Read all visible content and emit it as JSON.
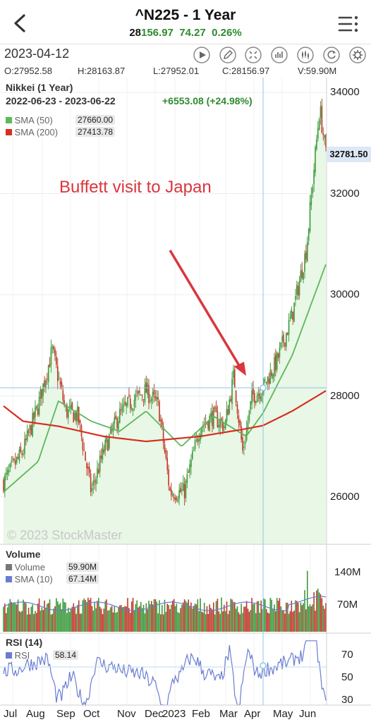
{
  "header": {
    "title": "^N225 - 1 Year",
    "price_head": "28",
    "price_tail": "156.97",
    "change": "74.27",
    "change_pct": "0.26%",
    "accent_up": "#2f8a2f"
  },
  "toolbar": {
    "date": "2023-04-12",
    "icons": [
      "play-icon",
      "pencil-icon",
      "expand-icon",
      "bar-chart-icon",
      "candle-chart-icon",
      "refresh-icon",
      "gear-icon"
    ]
  },
  "ohlc": {
    "open": "O:27952.58",
    "high": "H:28163.87",
    "low": "L:27952.01",
    "close": "C:28156.97",
    "volume": "V:59.90M"
  },
  "price_panel": {
    "title": "Nikkei (1 Year)",
    "range": "2022-06-23 - 2023-06-22",
    "change": "+6553.08 (+24.98%)",
    "sma50_label": "SMA (50)",
    "sma50_value": "27660.00",
    "sma200_label": "SMA (200)",
    "sma200_value": "27413.78",
    "last_price": "32781.50",
    "annotation": "Buffett visit to Japan",
    "watermark": "© 2023 StockMaster",
    "colors": {
      "up": "#3c9a3c",
      "down": "#c0392b",
      "sma50": "#5cb85c",
      "sma200": "#d62f20",
      "crosshair": "#8ec5e8"
    }
  },
  "volume_panel": {
    "title": "Volume",
    "vol_label": "Volume",
    "vol_value": "59.90M",
    "sma_label": "SMA (10)",
    "sma_value": "67.14M"
  },
  "rsi_panel": {
    "title": "RSI (14)",
    "label": "RSI",
    "value": "58.14"
  },
  "axes": {
    "price_ticks": [
      "34000",
      "32000",
      "30000",
      "28000",
      "26000"
    ],
    "volume_ticks": [
      "140M",
      "70M"
    ],
    "rsi_ticks": [
      "70",
      "50",
      "30"
    ],
    "x_ticks": [
      "Jul",
      "Aug",
      "Sep",
      "Oct",
      "Nov",
      "Dec",
      "2023",
      "Feb",
      "Mar",
      "Apr",
      "May",
      "Jun"
    ]
  },
  "chart_data": {
    "type": "line",
    "series": [
      {
        "name": "Nikkei (1 Year)",
        "x": [
          "2022-06-23",
          "2022-07-15",
          "2022-08-01",
          "2022-08-17",
          "2022-09-01",
          "2022-09-15",
          "2022-09-30",
          "2022-10-14",
          "2022-10-31",
          "2022-11-15",
          "2022-12-01",
          "2022-12-15",
          "2022-12-28",
          "2023-01-13",
          "2023-01-31",
          "2023-02-15",
          "2023-02-28",
          "2023-03-10",
          "2023-03-20",
          "2023-03-31",
          "2023-04-12",
          "2023-04-28",
          "2023-05-15",
          "2023-05-31",
          "2023-06-15",
          "2023-06-22"
        ],
        "values": [
          26300,
          26900,
          27800,
          28900,
          27700,
          27600,
          26100,
          26900,
          27600,
          27900,
          28100,
          27800,
          26100,
          26100,
          27400,
          27600,
          27400,
          28400,
          26900,
          28000,
          28157,
          28700,
          29600,
          30900,
          33700,
          32782
        ]
      },
      {
        "name": "SMA (50)",
        "x": [
          "2022-06-23",
          "2022-08-01",
          "2022-08-24",
          "2022-09-30",
          "2022-11-01",
          "2022-12-01",
          "2023-01-10",
          "2023-02-15",
          "2023-03-24",
          "2023-04-12",
          "2023-05-15",
          "2023-06-22"
        ],
        "values": [
          26100,
          26700,
          27900,
          27500,
          27300,
          27700,
          27000,
          27600,
          27200,
          27660,
          28800,
          30600
        ]
      },
      {
        "name": "SMA (200)",
        "x": [
          "2022-06-23",
          "2022-07-15",
          "2022-08-24",
          "2022-10-14",
          "2022-12-01",
          "2023-01-31",
          "2023-03-24",
          "2023-04-12",
          "2023-05-15",
          "2023-06-22"
        ],
        "values": [
          27800,
          27500,
          27400,
          27200,
          27100,
          27200,
          27350,
          27414,
          27700,
          28100
        ]
      }
    ],
    "ylim": [
      25600,
      34200
    ],
    "title": "Nikkei (1 Year)",
    "grid": true,
    "legend": "top-left"
  }
}
